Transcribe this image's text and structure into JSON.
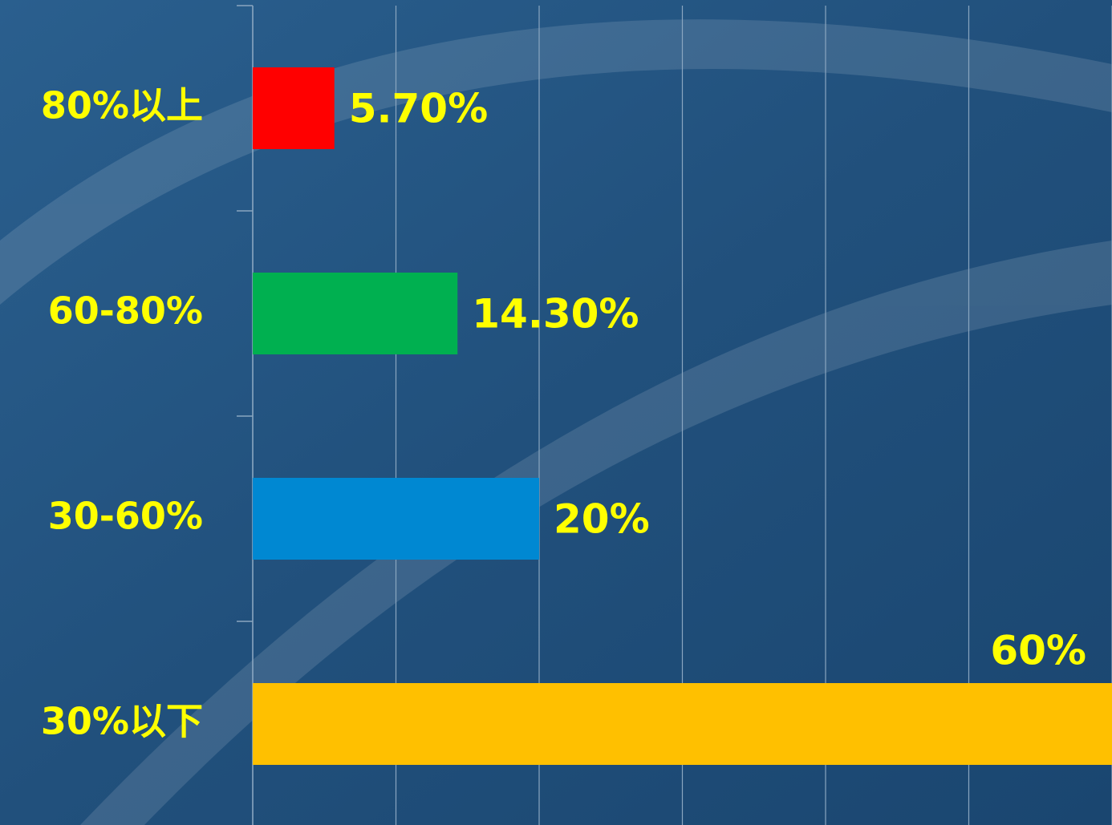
{
  "chart_data": {
    "type": "bar",
    "orientation": "horizontal",
    "categories": [
      "80%以上",
      "60-80%",
      "30-60%",
      "30%以下"
    ],
    "values": [
      5.7,
      14.3,
      20,
      60
    ],
    "value_labels": [
      "5.70%",
      "14.30%",
      "20%",
      "60%"
    ],
    "colors": [
      "#ff0000",
      "#00b050",
      "#0088d2",
      "#ffc000"
    ],
    "xlim": [
      0,
      60
    ],
    "xticks": [
      0,
      10,
      20,
      30,
      40,
      50,
      60
    ],
    "grid": true
  }
}
